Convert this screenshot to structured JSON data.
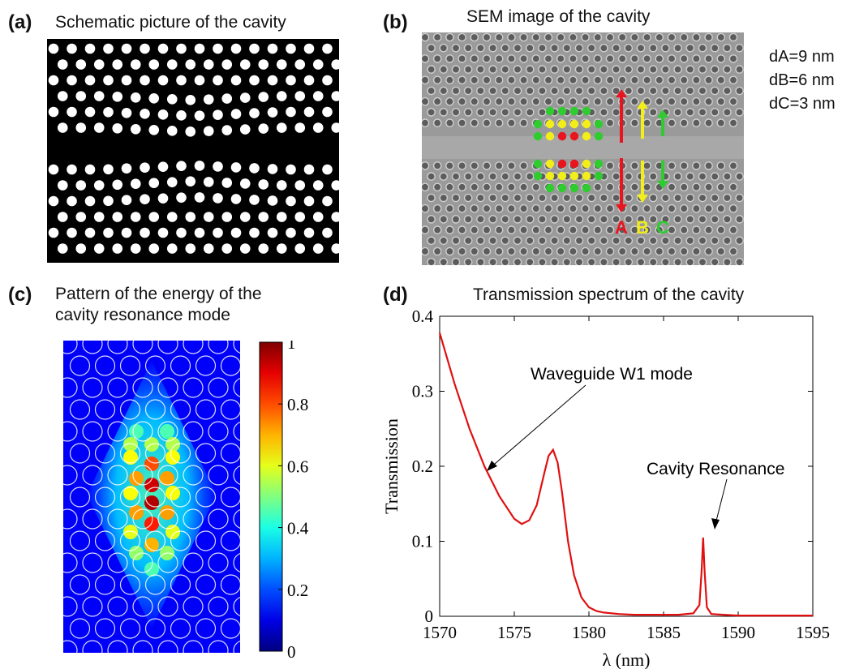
{
  "panels": {
    "a": {
      "letter": "(a)",
      "title": "Schematic picture of the cavity"
    },
    "b": {
      "letter": "(b)",
      "title": "SEM image of the cavity",
      "params": [
        "dA=9 nm",
        "dB=6 nm",
        "dC=3 nm"
      ],
      "arrow_labels": [
        "A",
        "B",
        "C"
      ],
      "colors": {
        "A": "#e8141e",
        "B": "#f2ee1a",
        "C": "#2ecc2e"
      }
    },
    "c": {
      "letter": "(c)",
      "title_lines": [
        "Pattern of the energy of the",
        "cavity resonance mode"
      ],
      "colorbar_ticks": [
        "1",
        "0.8",
        "0.6",
        "0.4",
        "0.2",
        "0"
      ]
    },
    "d": {
      "letter": "(d)",
      "title": "Transmission spectrum of the cavity",
      "annotations": [
        "Waveguide W1 mode",
        "Cavity Resonance"
      ]
    }
  },
  "chart_data": {
    "type": "line",
    "xlabel": "λ (nm)",
    "ylabel": "Transmission",
    "xlim": [
      1570,
      1595
    ],
    "ylim": [
      0,
      0.4
    ],
    "xticks": [
      1570,
      1575,
      1580,
      1585,
      1590,
      1595
    ],
    "yticks": [
      0,
      0.1,
      0.2,
      0.3,
      0.4
    ],
    "color": "#e01010",
    "series": [
      {
        "x": [
          1570,
          1571,
          1572,
          1573,
          1574,
          1575,
          1575.5,
          1576,
          1576.5,
          1577,
          1577.3,
          1577.6,
          1577.9,
          1578.2,
          1578.6,
          1579,
          1579.5,
          1580,
          1580.5,
          1581,
          1582,
          1583,
          1584,
          1585,
          1586,
          1587,
          1587.4,
          1587.55,
          1587.65,
          1587.75,
          1587.9,
          1588.2,
          1589,
          1590,
          1592,
          1595
        ],
        "y": [
          0.378,
          0.31,
          0.25,
          0.2,
          0.16,
          0.13,
          0.123,
          0.128,
          0.148,
          0.19,
          0.214,
          0.222,
          0.205,
          0.165,
          0.1,
          0.055,
          0.025,
          0.012,
          0.007,
          0.005,
          0.003,
          0.002,
          0.002,
          0.002,
          0.002,
          0.004,
          0.015,
          0.06,
          0.105,
          0.06,
          0.012,
          0.003,
          0.002,
          0.001,
          0.001,
          0.001
        ]
      }
    ]
  }
}
